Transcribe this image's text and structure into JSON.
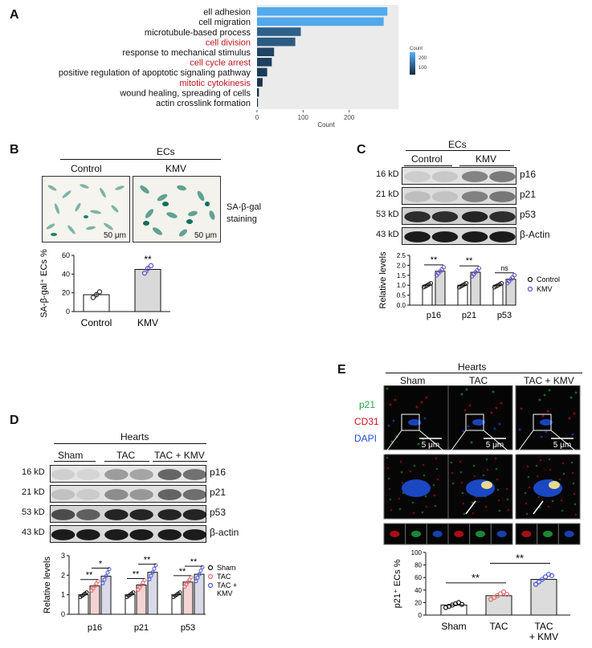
{
  "panels": {
    "a": "A",
    "b": "B",
    "c": "C",
    "d": "D",
    "e": "E"
  },
  "chart_data": [
    {
      "type": "bar",
      "orientation": "horizontal",
      "categories": [
        "ell adhesion",
        "cell migration",
        "microtubule-based process",
        "cell division",
        "response to mechanical stimulus",
        "cell cycle arrest",
        "positive regulation of apoptotic signaling pathway",
        "mitotic cytokinesis",
        "wound healing, spreading of cells",
        "actin crosslink formation"
      ],
      "values": [
        283,
        275,
        95,
        83,
        37,
        32,
        22,
        12,
        4,
        2
      ],
      "highlighted": [
        "cell division",
        "cell cycle arrest",
        "mitotic cytokinesis"
      ],
      "highlight_color": "#c0161c",
      "xlabel": "Count",
      "xticks": [
        "0",
        "100",
        "200"
      ],
      "xlim": [
        0,
        300
      ],
      "legend": {
        "title": "Count",
        "ticks": [
          "200",
          "100"
        ]
      },
      "colors": {
        "high": "#56b1f7",
        "low": "#132b43"
      }
    },
    {
      "type": "bar",
      "categories": [
        "Control",
        "KMV"
      ],
      "values": [
        18,
        45
      ],
      "points": [
        [
          15,
          18,
          21
        ],
        [
          41,
          46,
          49
        ]
      ],
      "ylabel": "SA-β-gal⁺ ECs %",
      "ylim": [
        0,
        60
      ],
      "yticks": [
        "0",
        "20",
        "40",
        "60"
      ],
      "sig": "**"
    },
    {
      "type": "bar",
      "categories": [
        "p16",
        "p21",
        "p53"
      ],
      "series": [
        {
          "name": "Control",
          "values": [
            1.0,
            1.0,
            1.0
          ]
        },
        {
          "name": "KMV",
          "values": [
            1.7,
            1.65,
            1.3
          ]
        }
      ],
      "ylabel": "Relative levels",
      "ylim": [
        0,
        2.5
      ],
      "yticks": [
        "0.0",
        "0.5",
        "1.0",
        "1.5",
        "2.0",
        "2.5"
      ],
      "sig": [
        "**",
        "**",
        "ns"
      ],
      "legend": "right"
    },
    {
      "type": "bar",
      "categories": [
        "p16",
        "p21",
        "p53"
      ],
      "series": [
        {
          "name": "Sham",
          "values": [
            1.0,
            1.0,
            1.0
          ]
        },
        {
          "name": "TAC",
          "values": [
            1.45,
            1.5,
            1.65
          ]
        },
        {
          "name": "TAC +\nKMV",
          "values": [
            1.95,
            2.15,
            2.05
          ]
        }
      ],
      "ylabel": "Relative levels",
      "ylim": [
        0,
        3
      ],
      "yticks": [
        "0",
        "1",
        "2",
        "3"
      ],
      "sig_low": [
        "**",
        "**",
        "**"
      ],
      "sig_high": [
        "*",
        "**",
        "**"
      ],
      "legend": "right"
    },
    {
      "type": "bar",
      "categories": [
        "Sham",
        "TAC",
        "TAC\n+ KMV"
      ],
      "values": [
        16,
        31,
        57
      ],
      "ylabel": "p21⁺ ECs %",
      "ylim": [
        0,
        100
      ],
      "yticks": [
        "0",
        "20",
        "40",
        "60",
        "80",
        "100"
      ],
      "sig": [
        "**",
        "**"
      ]
    }
  ],
  "panel_b": {
    "group": "ECs",
    "conditions": [
      "Control",
      "KMV"
    ],
    "scale": "50 μm",
    "caption_line1": "SA-β-gal",
    "caption_line2": "staining"
  },
  "panel_c": {
    "group": "ECs",
    "conditions": [
      "Control",
      "KMV"
    ],
    "blots": [
      {
        "kd": "16 kD",
        "name": "p16"
      },
      {
        "kd": "21 kD",
        "name": "p21"
      },
      {
        "kd": "53 kD",
        "name": "p53"
      },
      {
        "kd": "43 kD",
        "name": "β-Actin"
      }
    ]
  },
  "panel_d": {
    "group": "Hearts",
    "conditions": [
      "Sham",
      "TAC",
      "TAC + KMV"
    ],
    "blots": [
      {
        "kd": "16 kD",
        "name": "p16"
      },
      {
        "kd": "21 kD",
        "name": "p21"
      },
      {
        "kd": "53 kD",
        "name": "p53"
      },
      {
        "kd": "43 kD",
        "name": "β-actin"
      }
    ]
  },
  "panel_e": {
    "group": "Hearts",
    "conditions": [
      "Sham",
      "TAC",
      "TAC + KMV"
    ],
    "channels": [
      "p21",
      "CD31",
      "DAPI"
    ],
    "channel_colors": [
      "#1fa845",
      "#d0121b",
      "#1e4fd8"
    ],
    "scale": "5 μm"
  }
}
